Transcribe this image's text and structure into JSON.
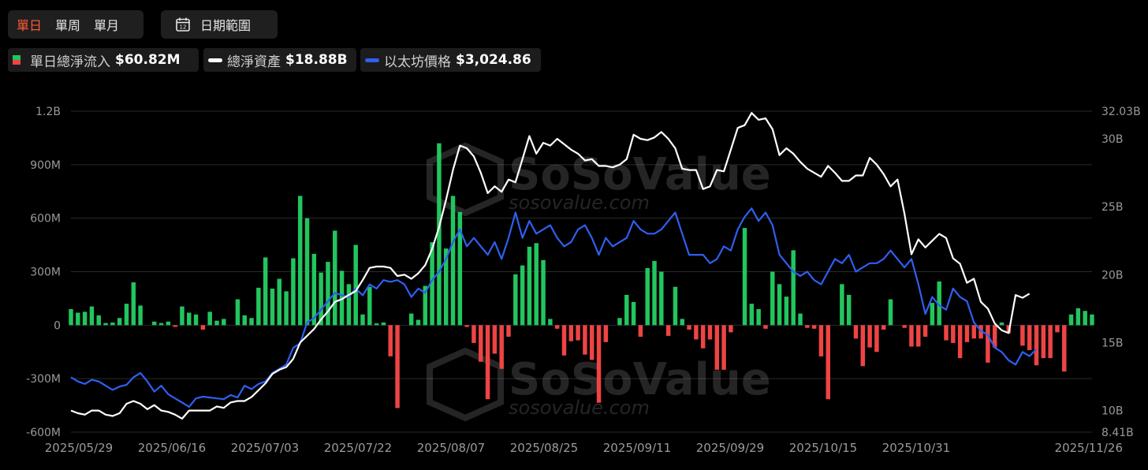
{
  "tabs": [
    {
      "label": "單日",
      "active": true
    },
    {
      "label": "單周",
      "active": false
    },
    {
      "label": "單月",
      "active": false
    }
  ],
  "date_range": {
    "label": "日期範圍",
    "icon": "calendar-icon"
  },
  "legend": [
    {
      "name": "單日總淨流入",
      "value": "$60.82M",
      "icon": "bar-swatch",
      "colors": [
        "#22c55e",
        "#ef4444"
      ]
    },
    {
      "name": "總淨資產",
      "value": "$18.88B",
      "icon": "line-swatch",
      "color": "#ffffff"
    },
    {
      "name": "以太坊價格",
      "value": "$3,024.86",
      "icon": "line-swatch",
      "color": "#2f5ff0"
    }
  ],
  "watermark": {
    "text": "SoSoValue",
    "url": "sosovalue.com"
  },
  "colors": {
    "positive": "#22c55e",
    "negative": "#ef4444",
    "net_assets": "#ffffff",
    "eth_price": "#2f5ff0"
  },
  "chart_data": {
    "type": "bar",
    "x_tick_labels": [
      "2025/05/29",
      "2025/06/16",
      "2025/07/03",
      "2025/07/22",
      "2025/08/07",
      "2025/08/25",
      "2025/09/11",
      "2025/09/29",
      "2025/10/15",
      "2025/10/31",
      "2025/11/26"
    ],
    "y_left": {
      "ticks": [
        "1.2B",
        "900M",
        "600M",
        "300M",
        "0",
        "-300M",
        "-600M"
      ],
      "range_millions": [
        -600,
        1200
      ]
    },
    "y_right": {
      "ticks": [
        "32.03B",
        "30B",
        "25B",
        "20B",
        "15B",
        "10B",
        "8.41B"
      ],
      "range_billions": [
        8.41,
        32.03
      ]
    },
    "grid": true,
    "series": [
      {
        "name": "單日總淨流入",
        "unit": "USD millions",
        "values": [
          90,
          70,
          75,
          105,
          55,
          12,
          15,
          40,
          120,
          240,
          110,
          0,
          20,
          12,
          20,
          -10,
          105,
          70,
          60,
          -25,
          75,
          25,
          35,
          0,
          145,
          55,
          40,
          210,
          380,
          205,
          260,
          190,
          375,
          725,
          600,
          400,
          295,
          355,
          530,
          305,
          230,
          450,
          60,
          215,
          10,
          15,
          -175,
          -465,
          0,
          65,
          30,
          220,
          465,
          1020,
          430,
          725,
          635,
          -10,
          -100,
          -205,
          -415,
          -160,
          -245,
          -65,
          285,
          335,
          440,
          460,
          365,
          35,
          -20,
          -170,
          -90,
          -85,
          -165,
          -195,
          -435,
          -95,
          0,
          40,
          170,
          130,
          -65,
          320,
          360,
          300,
          -60,
          215,
          35,
          -25,
          -80,
          -130,
          -80,
          -250,
          -250,
          -40,
          0,
          545,
          120,
          90,
          -20,
          300,
          230,
          160,
          420,
          65,
          -15,
          -20,
          -175,
          -415,
          0,
          230,
          170,
          -75,
          -230,
          -125,
          -150,
          -25,
          145,
          0,
          -15,
          -120,
          -120,
          -65,
          125,
          245,
          -85,
          -100,
          -185,
          -95,
          -75,
          -75,
          -210,
          -125,
          15,
          -45,
          0,
          -115,
          -140,
          -225,
          -185,
          -185,
          -40,
          -260,
          60,
          95,
          80,
          60
        ]
      },
      {
        "name": "總淨資產",
        "unit": "USD billions",
        "values": [
          10.0,
          9.8,
          9.7,
          10.0,
          10.0,
          9.7,
          9.6,
          9.8,
          10.5,
          10.7,
          10.5,
          10.1,
          10.4,
          10.0,
          9.9,
          9.7,
          9.4,
          10.0,
          10.0,
          10.0,
          10.0,
          10.3,
          10.2,
          10.6,
          10.7,
          10.7,
          11.0,
          11.5,
          12.0,
          12.7,
          13.0,
          13.2,
          13.8,
          15.0,
          15.5,
          16.0,
          16.7,
          17.3,
          18.0,
          18.2,
          18.5,
          18.8,
          19.6,
          20.5,
          20.6,
          20.6,
          20.5,
          19.9,
          20.0,
          19.7,
          20.1,
          20.7,
          21.9,
          23.5,
          25.5,
          27.7,
          29.5,
          29.3,
          28.7,
          27.5,
          26.0,
          26.5,
          26.1,
          27.0,
          26.8,
          28.5,
          30.2,
          28.9,
          29.7,
          29.5,
          30.0,
          29.6,
          29.2,
          28.9,
          28.4,
          28.5,
          28.0,
          28.0,
          27.9,
          28.1,
          28.5,
          30.3,
          30.0,
          29.9,
          30.1,
          30.5,
          30.0,
          29.3,
          27.8,
          27.7,
          27.7,
          26.3,
          26.5,
          27.7,
          27.6,
          29.2,
          30.8,
          31.0,
          31.9,
          31.4,
          31.5,
          30.7,
          28.8,
          29.3,
          28.9,
          28.3,
          27.8,
          27.5,
          27.2,
          28.0,
          27.5,
          26.9,
          26.9,
          27.3,
          27.3,
          28.6,
          28.1,
          27.4,
          26.5,
          27.0,
          24.5,
          21.5,
          22.6,
          22.0,
          22.5,
          23.0,
          22.7,
          21.2,
          20.8,
          19.4,
          19.7,
          18.0,
          17.5,
          16.4,
          15.9,
          15.7,
          18.5,
          18.3,
          18.6
        ]
      },
      {
        "name": "以太坊價格",
        "unit": "USD",
        "values": [
          2650,
          2600,
          2570,
          2620,
          2600,
          2550,
          2500,
          2540,
          2560,
          2650,
          2700,
          2600,
          2480,
          2550,
          2450,
          2400,
          2350,
          2300,
          2400,
          2420,
          2410,
          2400,
          2390,
          2440,
          2410,
          2550,
          2510,
          2570,
          2600,
          2700,
          2750,
          2800,
          3000,
          3050,
          3300,
          3350,
          3450,
          3550,
          3650,
          3620,
          3600,
          3700,
          3620,
          3750,
          3700,
          3800,
          3780,
          3800,
          3750,
          3600,
          3700,
          3650,
          3800,
          3900,
          4050,
          4250,
          4400,
          4200,
          4300,
          4200,
          4100,
          4250,
          4050,
          4300,
          4600,
          4300,
          4500,
          4350,
          4400,
          4450,
          4300,
          4200,
          4250,
          4400,
          4450,
          4300,
          4100,
          4300,
          4200,
          4250,
          4300,
          4500,
          4400,
          4350,
          4350,
          4400,
          4500,
          4600,
          4350,
          4100,
          4100,
          4100,
          4000,
          4050,
          4200,
          4150,
          4400,
          4550,
          4650,
          4500,
          4600,
          4450,
          4100,
          4000,
          3900,
          3850,
          3900,
          3800,
          3750,
          3900,
          4050,
          4000,
          4100,
          3900,
          3950,
          4000,
          4000,
          4050,
          4150,
          4050,
          3950,
          4050,
          3750,
          3400,
          3600,
          3500,
          3450,
          3700,
          3600,
          3550,
          3300,
          3200,
          3150,
          3000,
          2950,
          2850,
          2800,
          2950,
          2900,
          2980
        ]
      }
    ]
  }
}
